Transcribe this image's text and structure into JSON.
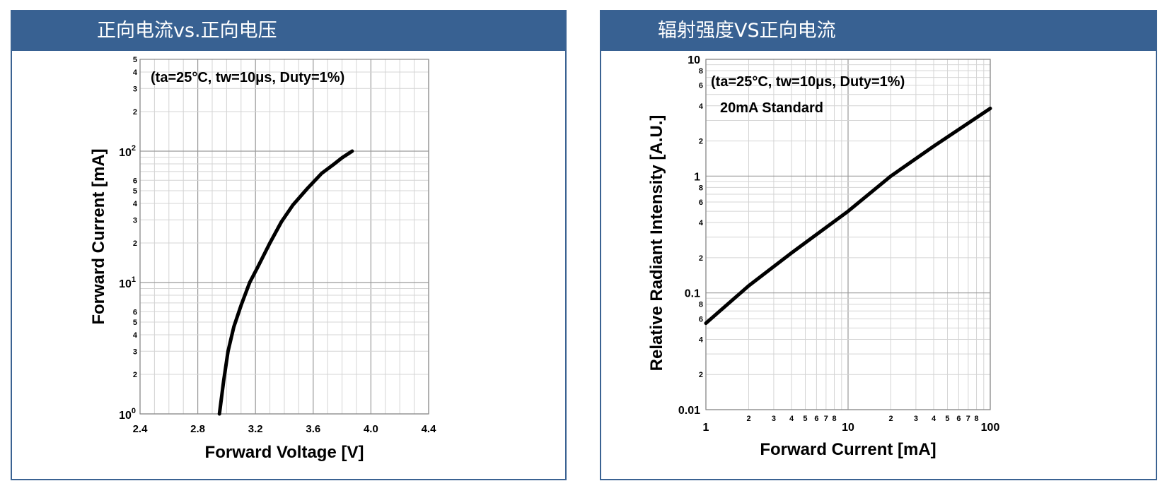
{
  "panels": {
    "left": {
      "header": "正向电流vs.正向电压"
    },
    "right": {
      "header": "辐射强度VS正向电流"
    }
  },
  "chart_data": [
    {
      "type": "line",
      "title": "正向电流vs.正向电压",
      "annotation": "(ta=25°C, tw=10μs, Duty=1%)",
      "xlabel": "Forward Voltage [V]",
      "ylabel": "Forward Current [mA]",
      "xscale": "linear",
      "yscale": "log",
      "xlim": [
        2.4,
        4.4
      ],
      "ylim": [
        1,
        500
      ],
      "grid": true,
      "x_ticks": [
        "2.4",
        "2.8",
        "3.2",
        "3.6",
        "4.0",
        "4.4"
      ],
      "y_major_ticks": [
        {
          "value": 1,
          "base": "10",
          "exp": "0"
        },
        {
          "value": 10,
          "base": "10",
          "exp": "1"
        },
        {
          "value": 100,
          "base": "10",
          "exp": "2"
        }
      ],
      "y_minor_labels": [
        2,
        3,
        4,
        5,
        6,
        20,
        30,
        40,
        50,
        60,
        200,
        300,
        400,
        500
      ],
      "series": [
        {
          "x": [
            2.95,
            2.98,
            3.01,
            3.05,
            3.1,
            3.16,
            3.22,
            3.3,
            3.38,
            3.46,
            3.56,
            3.66,
            3.74,
            3.8,
            3.87
          ],
          "y": [
            1,
            1.8,
            3,
            4.6,
            6.7,
            10,
            13.4,
            20,
            29,
            39,
            52,
            68,
            79,
            89,
            100
          ]
        }
      ]
    },
    {
      "type": "line",
      "title": "辐射强度VS正向电流",
      "annotation": "(ta=25°C, tw=10μs, Duty=1%)",
      "annotation2": "20mA Standard",
      "xlabel": "Forward Current [mA]",
      "ylabel": "Relative Radiant Intensity [A.U.]",
      "xscale": "log",
      "yscale": "log",
      "xlim": [
        1,
        100
      ],
      "ylim": [
        0.01,
        10
      ],
      "grid": true,
      "x_major_ticks": [
        "1",
        "10",
        "100"
      ],
      "x_minor_labels": [
        2,
        3,
        4,
        5,
        6,
        7,
        8,
        20,
        30,
        40,
        50,
        60,
        70,
        80
      ],
      "y_major_ticks": [
        "0.01",
        "0.1",
        "1",
        "10"
      ],
      "y_minor_labels": [
        0.02,
        0.04,
        0.06,
        0.08,
        0.2,
        0.4,
        0.6,
        0.8,
        2,
        4,
        6,
        8
      ],
      "series": [
        {
          "x": [
            1,
            2,
            4,
            10,
            20,
            40,
            100
          ],
          "y": [
            0.055,
            0.115,
            0.22,
            0.5,
            1.0,
            1.8,
            3.8
          ]
        }
      ]
    }
  ]
}
